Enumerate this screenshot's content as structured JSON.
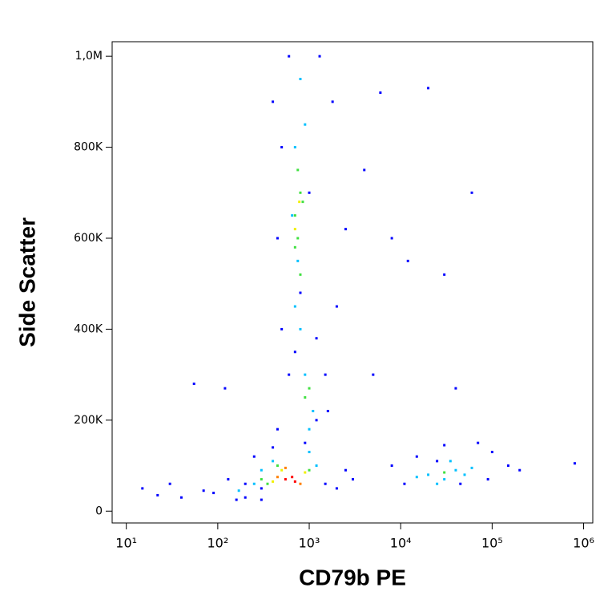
{
  "chart_data": {
    "type": "scatter",
    "x_label": "CD79b PE",
    "y_label": "Side Scatter",
    "xscale": "log",
    "xlim": [
      7,
      1260000
    ],
    "xticks": [
      {
        "value": 10,
        "label": "10¹"
      },
      {
        "value": 100,
        "label": "10²"
      },
      {
        "value": 1000,
        "label": "10³"
      },
      {
        "value": 10000,
        "label": "10⁴"
      },
      {
        "value": 100000,
        "label": "10⁵"
      },
      {
        "value": 1000000,
        "label": "10⁶"
      }
    ],
    "ylim": [
      -26000,
      1032000
    ],
    "yticks": [
      0,
      {
        "value": 200000,
        "label": "200K"
      },
      {
        "value": 400000,
        "label": "400K"
      },
      {
        "value": 600000,
        "label": "600K"
      },
      {
        "value": 800000,
        "label": "800K"
      },
      {
        "value": 1000000,
        "label": "1,0M"
      }
    ],
    "series": [
      {
        "color": "#0000ff",
        "x": [
          15,
          22,
          30,
          40,
          55,
          70,
          90,
          120,
          130,
          160,
          200,
          250,
          300,
          400,
          450,
          1500,
          2000,
          2500,
          3000,
          4000,
          5000,
          6000,
          8000,
          12000,
          20000,
          30000,
          40000,
          60000,
          1200,
          1500,
          2000,
          2500,
          1800,
          1300,
          600,
          500,
          450,
          500,
          700,
          1200,
          900,
          30000,
          70000,
          100000,
          150000,
          200000,
          800000,
          11000,
          8000,
          15000,
          25000,
          45000,
          90000,
          300,
          200,
          1600,
          800,
          600,
          1000,
          400
        ],
        "y": [
          50000,
          35000,
          60000,
          30000,
          280000,
          45000,
          40000,
          270000,
          70000,
          25000,
          30000,
          120000,
          25000,
          140000,
          180000,
          60000,
          50000,
          90000,
          70000,
          750000,
          300000,
          920000,
          600000,
          550000,
          930000,
          520000,
          270000,
          700000,
          200000,
          300000,
          450000,
          620000,
          900000,
          1000000,
          1000000,
          800000,
          600000,
          400000,
          350000,
          380000,
          150000,
          145000,
          150000,
          130000,
          100000,
          90000,
          105000,
          60000,
          100000,
          120000,
          110000,
          60000,
          70000,
          50000,
          60000,
          220000,
          480000,
          300000,
          700000,
          900000
        ]
      },
      {
        "color": "#00c0ff",
        "x": [
          800,
          900,
          700,
          650,
          750,
          700,
          900,
          1100,
          1000,
          250,
          300,
          400,
          1200,
          20000,
          30000,
          40000,
          15000,
          50000,
          60000,
          35000,
          25000,
          1000,
          170,
          800
        ],
        "y": [
          950000,
          850000,
          800000,
          650000,
          550000,
          450000,
          300000,
          220000,
          180000,
          60000,
          90000,
          110000,
          100000,
          80000,
          70000,
          90000,
          75000,
          80000,
          95000,
          110000,
          60000,
          130000,
          45000,
          400000
        ]
      },
      {
        "color": "#40e040",
        "x": [
          750,
          800,
          700,
          750,
          800,
          700,
          900,
          1000,
          350,
          300,
          1000,
          450,
          30000,
          850
        ],
        "y": [
          750000,
          700000,
          650000,
          600000,
          520000,
          580000,
          250000,
          270000,
          60000,
          70000,
          90000,
          100000,
          85000,
          680000
        ]
      },
      {
        "color": "#f0f000",
        "x": [
          700,
          780,
          400,
          900,
          500
        ],
        "y": [
          620000,
          680000,
          65000,
          85000,
          90000
        ]
      },
      {
        "color": "#ff8000",
        "x": [
          450,
          800,
          550
        ],
        "y": [
          75000,
          60000,
          95000
        ]
      },
      {
        "color": "#ff0000",
        "x": [
          550,
          650,
          700
        ],
        "y": [
          70000,
          75000,
          65000
        ]
      }
    ]
  }
}
